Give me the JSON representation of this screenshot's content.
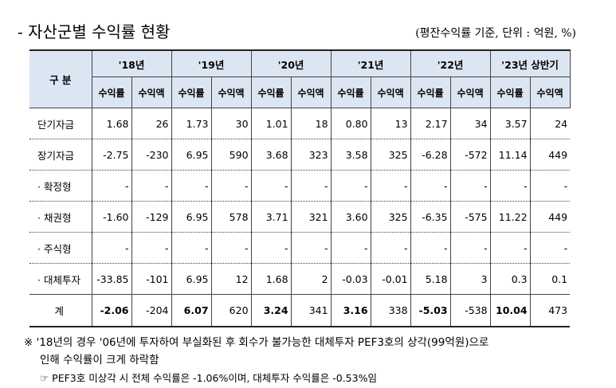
{
  "header": {
    "title": "- 자산군별 수익률 현황",
    "unit": "(평잔수익률 기준, 단위 : 억원, %)"
  },
  "table": {
    "corner": "구 분",
    "years": [
      "'18년",
      "'19년",
      "'20년",
      "'21년",
      "'22년",
      "'23년 상반기"
    ],
    "subheaders": [
      "수익률",
      "수익액",
      "수익률",
      "수익액",
      "수익률",
      "수익액",
      "수익률",
      "수익액",
      "수익률",
      "수익액",
      "수익률",
      "수익액"
    ],
    "rows": [
      [
        "단기자금",
        "1.68",
        "26",
        "1.73",
        "30",
        "1.01",
        "18",
        "0.80",
        "13",
        "2.17",
        "34",
        "3.57",
        "24"
      ],
      [
        "장기자금",
        "-2.75",
        "-230",
        "6.95",
        "590",
        "3.68",
        "323",
        "3.58",
        "325",
        "-6.28",
        "-572",
        "11.14",
        "449"
      ],
      [
        "· 확정형",
        "-",
        "-",
        "-",
        "-",
        "-",
        "-",
        "-",
        "-",
        "-",
        "-",
        "-",
        "-"
      ],
      [
        "· 채권형",
        "-1.60",
        "-129",
        "6.95",
        "578",
        "3.71",
        "321",
        "3.60",
        "325",
        "-6.35",
        "-575",
        "11.22",
        "449"
      ],
      [
        "· 주식형",
        "-",
        "-",
        "-",
        "-",
        "-",
        "-",
        "-",
        "-",
        "-",
        "-",
        "-",
        "-"
      ],
      [
        "· 대체투자",
        "-33.85",
        "-101",
        "6.95",
        "12",
        "1.68",
        "2",
        "-0.03",
        "-0.01",
        "5.18",
        "3",
        "0.3",
        "0.1"
      ],
      [
        "계",
        "-2.06",
        "-204",
        "6.07",
        "620",
        "3.24",
        "341",
        "3.16",
        "338",
        "-5.03",
        "-538",
        "10.04",
        "473"
      ]
    ]
  },
  "notes": [
    "※ '18년의 경우 '06년에 투자하여 부실화된 후 회수가 불가능한 대체투자 PEF3호의 상각(99억원)으로",
    "인해 수익률이 크게 하락함",
    "☞ PEF3호 미상각 시 전체 수익률은 -1.06%이며, 대체투자 수익률은 -0.53%임"
  ]
}
